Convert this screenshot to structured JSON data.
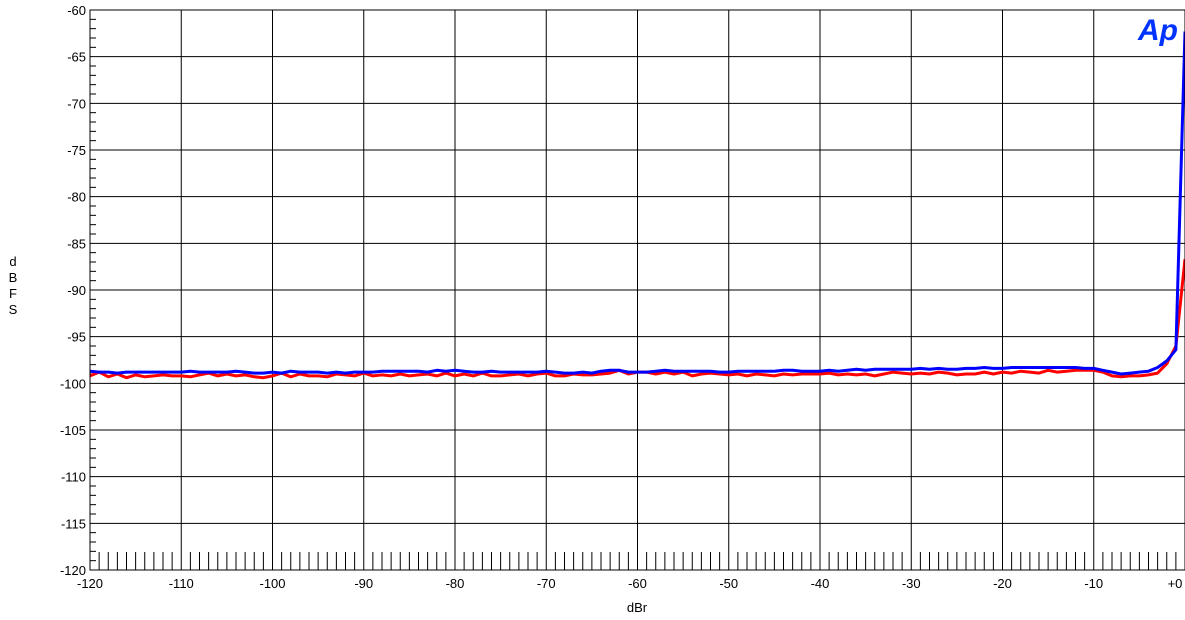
{
  "chart_data": {
    "type": "line",
    "xlabel": "dBr",
    "ylabel": [
      "d",
      "B",
      "F",
      "S"
    ],
    "xlim": [
      -120,
      0
    ],
    "ylim": [
      -120,
      -60
    ],
    "grid": true,
    "x_ticks": [
      -120,
      -110,
      -100,
      -90,
      -80,
      -70,
      -60,
      -50,
      -40,
      -30,
      -20,
      -10,
      0
    ],
    "x_tick_labels": [
      "-120",
      "-110",
      "-100",
      "-90",
      "-80",
      "-70",
      "-60",
      "-50",
      "-40",
      "-30",
      "-20",
      "-10",
      "+0"
    ],
    "y_ticks": [
      -60,
      -65,
      -70,
      -75,
      -80,
      -85,
      -90,
      -95,
      -100,
      -105,
      -110,
      -115,
      -120
    ],
    "y_tick_labels": [
      "-60",
      "-65",
      "-70",
      "-75",
      "-80",
      "-85",
      "-90",
      "-95",
      "-100",
      "-105",
      "-110",
      "-115",
      "-120"
    ],
    "series": [
      {
        "color": "#ff0000",
        "x": [
          -120,
          -119,
          -118,
          -117,
          -116,
          -115,
          -114,
          -113,
          -112,
          -111,
          -110,
          -109,
          -108,
          -107,
          -106,
          -105,
          -104,
          -103,
          -102,
          -101,
          -100,
          -99,
          -98,
          -97,
          -96,
          -95,
          -94,
          -93,
          -92,
          -91,
          -90,
          -89,
          -88,
          -87,
          -86,
          -85,
          -84,
          -83,
          -82,
          -81,
          -80,
          -79,
          -78,
          -77,
          -76,
          -75,
          -74,
          -73,
          -72,
          -71,
          -70,
          -69,
          -68,
          -67,
          -66,
          -65,
          -64,
          -63,
          -62,
          -61,
          -60,
          -59,
          -58,
          -57,
          -56,
          -55,
          -54,
          -53,
          -52,
          -51,
          -50,
          -49,
          -48,
          -47,
          -46,
          -45,
          -44,
          -43,
          -42,
          -41,
          -40,
          -39,
          -38,
          -37,
          -36,
          -35,
          -34,
          -33,
          -32,
          -31,
          -30,
          -29,
          -28,
          -27,
          -26,
          -25,
          -24,
          -23,
          -22,
          -21,
          -20,
          -19,
          -18,
          -17,
          -16,
          -15,
          -14,
          -13,
          -12,
          -11,
          -10,
          -9,
          -8,
          -7,
          -6,
          -5,
          -4,
          -3,
          -2,
          -1,
          0
        ],
        "y": [
          -99.2,
          -98.8,
          -99.3,
          -99.0,
          -99.4,
          -99.1,
          -99.3,
          -99.2,
          -99.1,
          -99.2,
          -99.2,
          -99.3,
          -99.1,
          -98.9,
          -99.2,
          -99.0,
          -99.2,
          -99.1,
          -99.3,
          -99.4,
          -99.2,
          -98.9,
          -99.3,
          -99.0,
          -99.2,
          -99.2,
          -99.3,
          -99.0,
          -99.1,
          -99.2,
          -98.9,
          -99.2,
          -99.1,
          -99.2,
          -99.0,
          -99.2,
          -99.1,
          -99.0,
          -99.2,
          -98.9,
          -99.2,
          -99.0,
          -99.2,
          -98.9,
          -99.2,
          -99.2,
          -99.1,
          -99.0,
          -99.2,
          -99.0,
          -98.9,
          -99.2,
          -99.2,
          -99.0,
          -99.1,
          -99.1,
          -99.0,
          -98.9,
          -98.6,
          -99.0,
          -98.8,
          -98.8,
          -99.0,
          -98.8,
          -99.0,
          -98.8,
          -99.2,
          -99.0,
          -98.9,
          -99.0,
          -99.1,
          -99.0,
          -99.2,
          -99.0,
          -99.1,
          -99.2,
          -99.0,
          -99.1,
          -99.0,
          -99.0,
          -99.0,
          -98.9,
          -99.1,
          -99.0,
          -99.1,
          -99.0,
          -99.2,
          -99.0,
          -98.8,
          -98.9,
          -99.0,
          -98.9,
          -99.0,
          -98.8,
          -98.9,
          -99.1,
          -99.0,
          -99.0,
          -98.8,
          -99.0,
          -98.8,
          -98.9,
          -98.7,
          -98.8,
          -98.9,
          -98.6,
          -98.8,
          -98.7,
          -98.6,
          -98.6,
          -98.6,
          -98.8,
          -99.2,
          -99.3,
          -99.2,
          -99.2,
          -99.1,
          -98.9,
          -97.9,
          -96.0,
          -86.7
        ]
      },
      {
        "color": "#0000ff",
        "x": [
          -120,
          -119,
          -118,
          -117,
          -116,
          -115,
          -114,
          -113,
          -112,
          -111,
          -110,
          -109,
          -108,
          -107,
          -106,
          -105,
          -104,
          -103,
          -102,
          -101,
          -100,
          -99,
          -98,
          -97,
          -96,
          -95,
          -94,
          -93,
          -92,
          -91,
          -90,
          -89,
          -88,
          -87,
          -86,
          -85,
          -84,
          -83,
          -82,
          -81,
          -80,
          -79,
          -78,
          -77,
          -76,
          -75,
          -74,
          -73,
          -72,
          -71,
          -70,
          -69,
          -68,
          -67,
          -66,
          -65,
          -64,
          -63,
          -62,
          -61,
          -60,
          -59,
          -58,
          -57,
          -56,
          -55,
          -54,
          -53,
          -52,
          -51,
          -50,
          -49,
          -48,
          -47,
          -46,
          -45,
          -44,
          -43,
          -42,
          -41,
          -40,
          -39,
          -38,
          -37,
          -36,
          -35,
          -34,
          -33,
          -32,
          -31,
          -30,
          -29,
          -28,
          -27,
          -26,
          -25,
          -24,
          -23,
          -22,
          -21,
          -20,
          -19,
          -18,
          -17,
          -16,
          -15,
          -14,
          -13,
          -12,
          -11,
          -10,
          -9,
          -8,
          -7,
          -6,
          -5,
          -4,
          -3,
          -2,
          -1,
          0
        ],
        "y": [
          -98.7,
          -98.8,
          -98.8,
          -98.9,
          -98.8,
          -98.8,
          -98.8,
          -98.8,
          -98.8,
          -98.8,
          -98.8,
          -98.7,
          -98.8,
          -98.8,
          -98.8,
          -98.8,
          -98.7,
          -98.8,
          -98.9,
          -98.9,
          -98.8,
          -98.9,
          -98.7,
          -98.8,
          -98.8,
          -98.8,
          -98.9,
          -98.8,
          -98.9,
          -98.8,
          -98.8,
          -98.8,
          -98.7,
          -98.7,
          -98.7,
          -98.7,
          -98.7,
          -98.8,
          -98.6,
          -98.7,
          -98.6,
          -98.7,
          -98.8,
          -98.8,
          -98.7,
          -98.8,
          -98.8,
          -98.8,
          -98.8,
          -98.8,
          -98.7,
          -98.8,
          -98.9,
          -98.9,
          -98.8,
          -98.9,
          -98.7,
          -98.6,
          -98.6,
          -98.8,
          -98.8,
          -98.8,
          -98.7,
          -98.6,
          -98.7,
          -98.7,
          -98.7,
          -98.7,
          -98.7,
          -98.8,
          -98.8,
          -98.7,
          -98.7,
          -98.7,
          -98.7,
          -98.7,
          -98.6,
          -98.6,
          -98.7,
          -98.7,
          -98.7,
          -98.6,
          -98.7,
          -98.6,
          -98.5,
          -98.6,
          -98.5,
          -98.5,
          -98.5,
          -98.5,
          -98.5,
          -98.4,
          -98.5,
          -98.4,
          -98.5,
          -98.5,
          -98.4,
          -98.4,
          -98.3,
          -98.4,
          -98.4,
          -98.3,
          -98.3,
          -98.3,
          -98.3,
          -98.3,
          -98.3,
          -98.3,
          -98.3,
          -98.4,
          -98.4,
          -98.6,
          -98.8,
          -99.0,
          -98.9,
          -98.8,
          -98.7,
          -98.3,
          -97.6,
          -96.4,
          -62.3
        ]
      }
    ]
  },
  "logo": {
    "text": "Ap",
    "color": "#0033ff"
  }
}
